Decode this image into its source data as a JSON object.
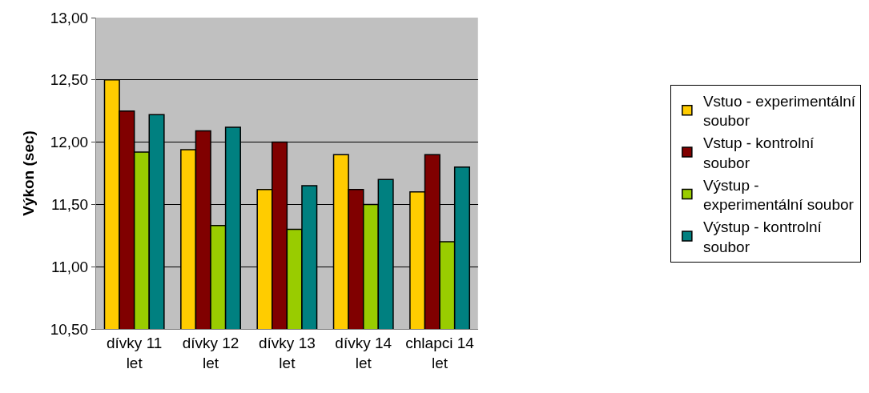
{
  "chart_data": {
    "type": "bar",
    "ylabel": "Výkon (sec)",
    "categories": [
      "dívky 11 let",
      "dívky 12 let",
      "dívky 13 let",
      "dívky 14 let",
      "chlapci 14 let"
    ],
    "series": [
      {
        "name": "Vstuo - experimentální soubor",
        "color": "#ffcc00",
        "values": [
          12.5,
          11.94,
          11.62,
          11.9,
          11.6
        ]
      },
      {
        "name": "Vstup - kontrolní soubor",
        "color": "#800000",
        "values": [
          12.25,
          12.09,
          12.0,
          11.62,
          11.9
        ]
      },
      {
        "name": "Výstup - experimentální soubor",
        "color": "#99cc00",
        "values": [
          11.92,
          11.33,
          11.3,
          11.5,
          11.2
        ]
      },
      {
        "name": "Výstup - kontrolní soubor",
        "color": "#008080",
        "values": [
          12.22,
          12.12,
          11.65,
          11.7,
          11.8
        ]
      }
    ],
    "ylim": [
      10.5,
      13.0
    ],
    "yticks": [
      {
        "value": 10.5,
        "label": "10,50"
      },
      {
        "value": 11.0,
        "label": "11,00"
      },
      {
        "value": 11.5,
        "label": "11,50"
      },
      {
        "value": 12.0,
        "label": "12,00"
      },
      {
        "value": 12.5,
        "label": "12,50"
      },
      {
        "value": 13.0,
        "label": "13,00"
      }
    ],
    "grid": "y",
    "legend": "right"
  }
}
